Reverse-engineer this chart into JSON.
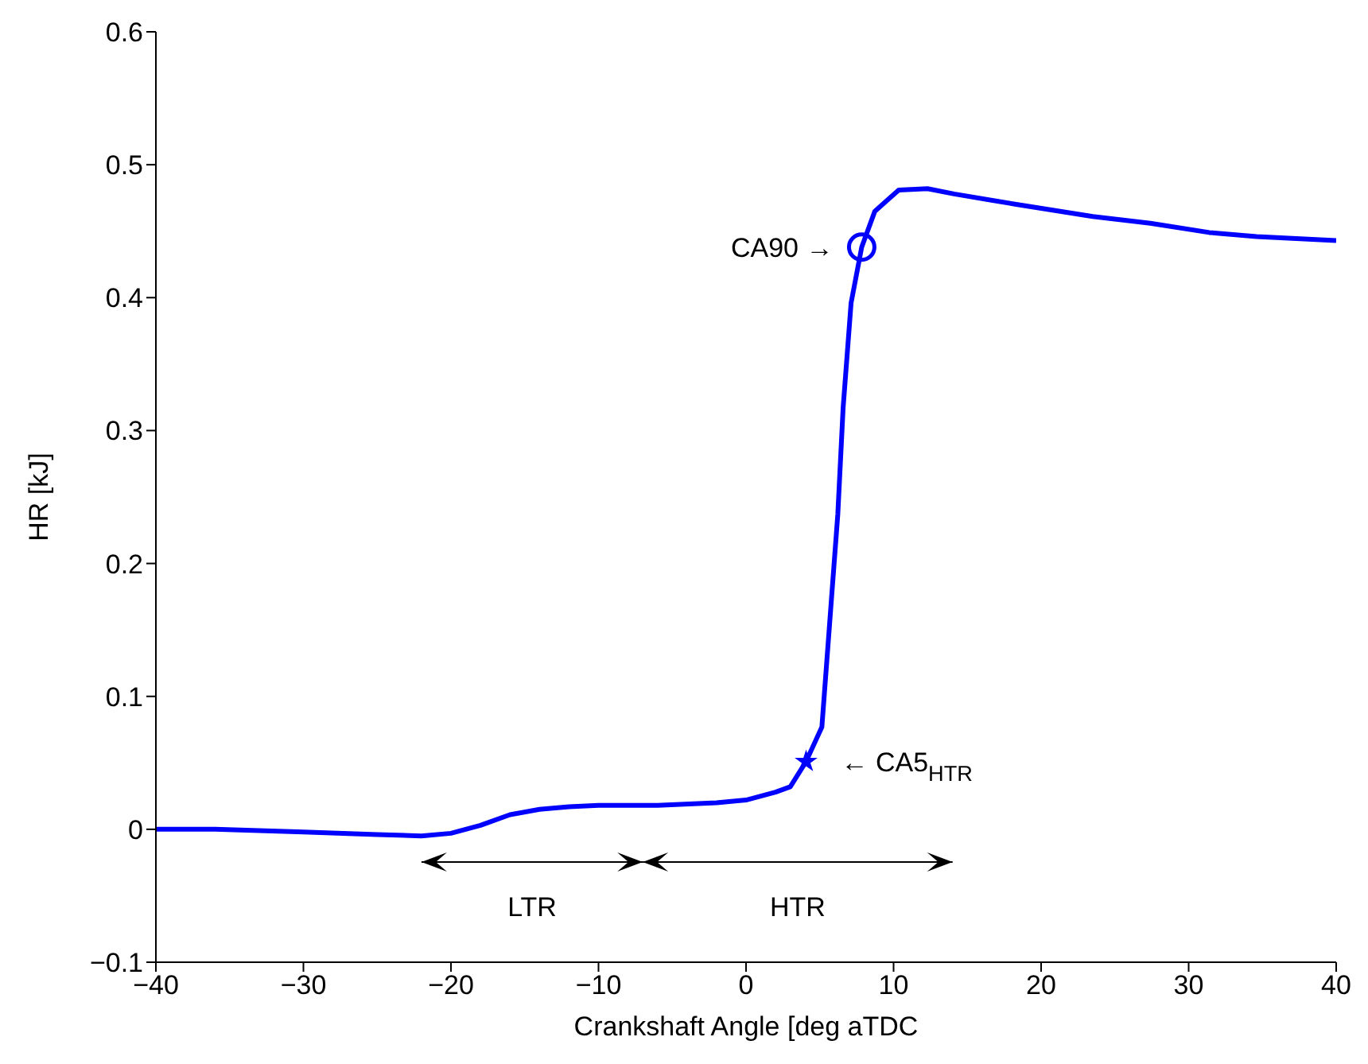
{
  "chart_data": {
    "type": "line",
    "xlabel": "Crankshaft Angle [deg aTDC",
    "ylabel": "HR [kJ]",
    "xlim": [
      -40,
      40
    ],
    "xticks": [
      {
        "value": -40,
        "label": "−40"
      },
      {
        "value": -30,
        "label": "−30"
      },
      {
        "value": -20,
        "label": "−20"
      },
      {
        "value": -10,
        "label": "−10"
      },
      0,
      10,
      20,
      30,
      40
    ],
    "ylim": [
      -0.1,
      0.6
    ],
    "yticks": [
      {
        "value": -0.1,
        "label": "−0.1"
      },
      0,
      0.1,
      0.2,
      0.3,
      0.4,
      0.5,
      0.6
    ],
    "marker": "none",
    "series": [
      {
        "color": "#0000ff",
        "x": [
          -40,
          -36,
          -30,
          -25,
          -22,
          -20,
          -18,
          -16,
          -14,
          -12,
          -10,
          -6,
          -2,
          0,
          2,
          3,
          4.07,
          5.14,
          5.68,
          6.22,
          6.58,
          7.12,
          7.84,
          8.73,
          10.35,
          12.3,
          14.1,
          18.4,
          23.5,
          27.4,
          31.4,
          34.6,
          40
        ],
        "values": [
          0.0,
          0.0,
          -0.002,
          -0.004,
          -0.005,
          -0.003,
          0.003,
          0.011,
          0.015,
          0.017,
          0.018,
          0.018,
          0.02,
          0.022,
          0.028,
          0.032,
          0.051,
          0.077,
          0.157,
          0.237,
          0.317,
          0.396,
          0.438,
          0.465,
          0.481,
          0.482,
          0.478,
          0.47,
          0.461,
          0.456,
          0.449,
          0.446,
          0.443
        ]
      },
      {
        "type": "scatter",
        "color": "#0000ff",
        "marker": "star",
        "x": [
          4.07
        ],
        "values": [
          0.051
        ]
      },
      {
        "type": "scatter",
        "color": "#0000ff",
        "marker": "circle",
        "x": [
          7.84
        ],
        "values": [
          0.438
        ]
      }
    ],
    "annotations": [
      {
        "text": "CA90 →",
        "x": 7.84,
        "y": 0.438
      },
      {
        "text": "← CA5$_{HTR}$",
        "x": 4.07,
        "y": 0.051
      },
      "LTR",
      "HTR"
    ]
  }
}
